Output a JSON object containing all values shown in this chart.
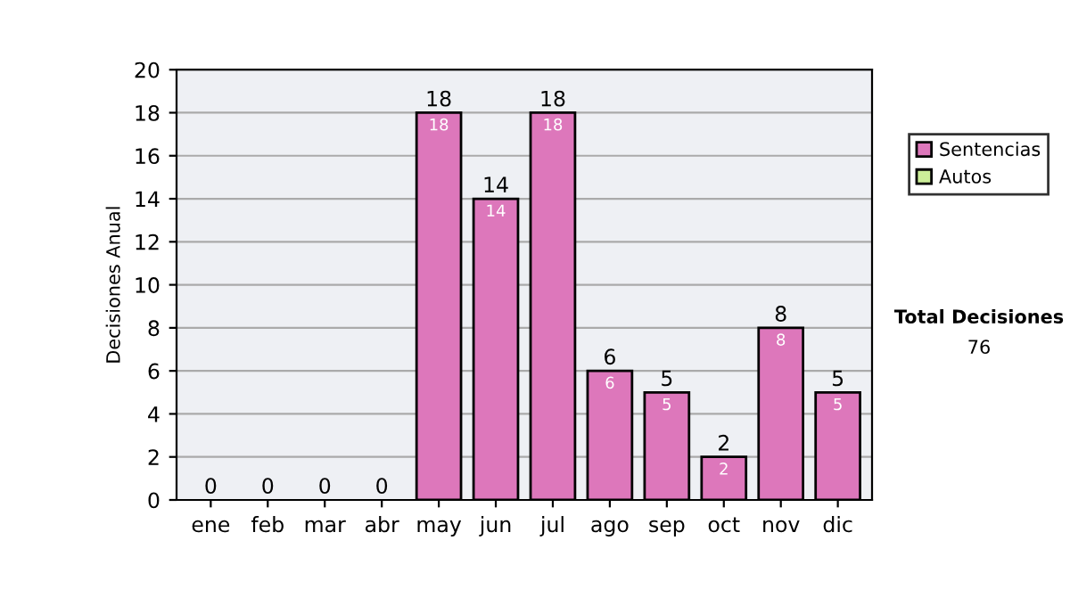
{
  "chart_data": {
    "type": "bar",
    "ylabel": "Decisiones Anual",
    "categories": [
      "ene",
      "feb",
      "mar",
      "abr",
      "may",
      "jun",
      "jul",
      "ago",
      "sep",
      "oct",
      "nov",
      "dic"
    ],
    "stacked": true,
    "series": [
      {
        "name": "Sentencias",
        "color": "#dd77bb",
        "values": [
          0,
          0,
          0,
          0,
          18,
          14,
          18,
          6,
          5,
          2,
          8,
          5
        ],
        "value_labels": [
          null,
          null,
          null,
          null,
          "18",
          "14",
          "18",
          "6",
          "5",
          "2",
          "8",
          "5"
        ]
      },
      {
        "name": "Autos",
        "color": "#ccee99",
        "values": [
          0,
          0,
          0,
          0,
          0,
          0,
          0,
          0,
          0,
          0,
          0,
          0
        ]
      }
    ],
    "totals": [
      "0",
      "0",
      "0",
      "0",
      "18",
      "14",
      "18",
      "6",
      "5",
      "2",
      "8",
      "5"
    ],
    "ylim": [
      0,
      20
    ],
    "yticks": [
      0,
      2,
      4,
      6,
      8,
      10,
      12,
      14,
      16,
      18,
      20
    ],
    "grid": "y",
    "legend": "right",
    "annotations": [
      "Total Decisiones",
      "76"
    ]
  }
}
